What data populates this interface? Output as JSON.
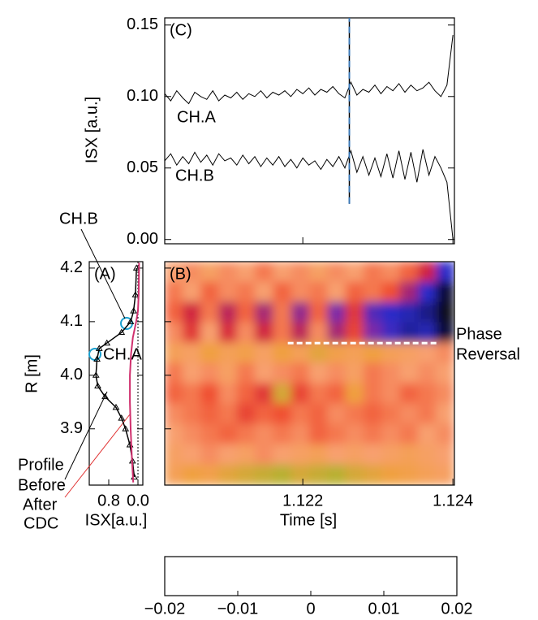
{
  "chart_data": [
    {
      "type": "line",
      "panel": "(C)",
      "ylabel": "ISX [a.u.]",
      "xlim": [
        1.12016,
        1.12402
      ],
      "xticks": [
        1.122,
        1.124
      ],
      "ylim": [
        -0.003,
        0.155
      ],
      "yticks": [
        {
          "value": 0,
          "label": "0.00"
        },
        0.05,
        {
          "value": 0.1,
          "label": "0.10"
        },
        0.15
      ],
      "marker_time": 1.12262,
      "marker_span": [
        0.025,
        0.155
      ],
      "marker_colors": [
        "#000000",
        "#3a78b8"
      ],
      "x": [
        1.12016,
        1.12024,
        1.12032,
        1.1204,
        1.12048,
        1.12056,
        1.12064,
        1.12072,
        1.1208,
        1.12088,
        1.12096,
        1.12104,
        1.12112,
        1.1212,
        1.12128,
        1.12136,
        1.12144,
        1.12152,
        1.1216,
        1.12168,
        1.12176,
        1.12184,
        1.12192,
        1.122,
        1.12208,
        1.12216,
        1.12224,
        1.12232,
        1.1224,
        1.12248,
        1.12256,
        1.12264,
        1.12272,
        1.1228,
        1.12288,
        1.12296,
        1.12304,
        1.12312,
        1.1232,
        1.12328,
        1.12336,
        1.12344,
        1.12352,
        1.1236,
        1.12368,
        1.12376,
        1.12384,
        1.12392,
        1.124
      ],
      "series": [
        {
          "name": "CH.A",
          "color": "#000000",
          "values": [
            0.102,
            0.097,
            0.104,
            0.099,
            0.095,
            0.103,
            0.1,
            0.098,
            0.104,
            0.097,
            0.101,
            0.099,
            0.103,
            0.098,
            0.102,
            0.1,
            0.104,
            0.099,
            0.103,
            0.101,
            0.104,
            0.1,
            0.105,
            0.102,
            0.106,
            0.101,
            0.105,
            0.103,
            0.107,
            0.102,
            0.099,
            0.11,
            0.101,
            0.105,
            0.103,
            0.108,
            0.102,
            0.107,
            0.104,
            0.109,
            0.103,
            0.108,
            0.104,
            0.106,
            0.11,
            0.104,
            0.1,
            0.108,
            0.143
          ]
        },
        {
          "name": "CH.B",
          "color": "#000000",
          "values": [
            0.055,
            0.06,
            0.052,
            0.058,
            0.053,
            0.061,
            0.054,
            0.059,
            0.052,
            0.06,
            0.055,
            0.057,
            0.052,
            0.059,
            0.053,
            0.058,
            0.051,
            0.057,
            0.052,
            0.058,
            0.051,
            0.056,
            0.05,
            0.057,
            0.052,
            0.055,
            0.049,
            0.056,
            0.051,
            0.058,
            0.05,
            0.062,
            0.047,
            0.058,
            0.045,
            0.057,
            0.044,
            0.06,
            0.043,
            0.062,
            0.042,
            0.061,
            0.04,
            0.063,
            0.045,
            0.058,
            0.05,
            0.04,
            0.0
          ]
        }
      ]
    },
    {
      "type": "heatmap",
      "panel": "(B)",
      "xlabel": "Time [s]",
      "xlim": [
        1.12016,
        1.12402
      ],
      "xticks": [
        1.122,
        1.124
      ],
      "ylim": [
        3.795,
        4.212
      ],
      "yticks": [
        4.2,
        4.1,
        4.0,
        3.9
      ],
      "z": [
        [
          0.004,
          0.003,
          0.005,
          0.003,
          0.004,
          0.002,
          0.004,
          0.003,
          0.005,
          0.003,
          0.004,
          0.002,
          0.003,
          0.001,
          -0.004,
          -0.012
        ],
        [
          0.002,
          0.004,
          0.001,
          0.003,
          0.002,
          0.004,
          0.001,
          0.003,
          0.002,
          0.004,
          0.001,
          0.002,
          0.0,
          -0.006,
          -0.012,
          -0.018
        ],
        [
          0.001,
          -0.004,
          0.002,
          -0.005,
          0.001,
          -0.006,
          0.002,
          -0.007,
          0.001,
          -0.008,
          -0.002,
          -0.01,
          -0.012,
          -0.013,
          -0.015,
          -0.019
        ],
        [
          0.003,
          -0.002,
          0.004,
          -0.003,
          0.003,
          -0.004,
          0.002,
          -0.005,
          0.003,
          -0.006,
          -0.001,
          -0.008,
          -0.011,
          -0.014,
          -0.013,
          -0.018
        ],
        [
          0.006,
          0.005,
          0.008,
          0.006,
          0.007,
          0.005,
          0.008,
          0.006,
          0.009,
          0.007,
          0.006,
          0.008,
          0.006,
          0.005,
          0.004,
          0.003
        ],
        [
          0.002,
          0.004,
          0.003,
          0.005,
          0.002,
          0.004,
          0.003,
          0.002,
          0.004,
          0.003,
          0.005,
          0.002,
          0.003,
          0.004,
          0.003,
          0.004
        ],
        [
          0.001,
          0.002,
          0.0,
          0.003,
          0.001,
          -0.002,
          0.01,
          -0.001,
          0.002,
          0.001,
          0.008,
          0.002,
          0.003,
          0.001,
          0.002,
          0.003
        ],
        [
          0.003,
          0.002,
          0.001,
          0.002,
          -0.001,
          0.001,
          0.0,
          0.002,
          0.001,
          0.003,
          0.002,
          0.001,
          0.002,
          0.003,
          0.002,
          0.004
        ],
        [
          0.004,
          0.003,
          0.002,
          0.001,
          0.002,
          0.003,
          0.002,
          0.003,
          0.001,
          0.002,
          0.003,
          0.002,
          0.003,
          0.002,
          0.004,
          0.003
        ],
        [
          0.005,
          0.004,
          0.003,
          0.004,
          0.005,
          0.003,
          0.004,
          0.005,
          0.006,
          0.004,
          0.005,
          0.004,
          0.005,
          0.006,
          0.005,
          0.004
        ],
        [
          0.006,
          0.008,
          0.007,
          0.009,
          0.01,
          0.011,
          0.012,
          0.01,
          0.011,
          0.012,
          0.01,
          0.009,
          0.008,
          0.007,
          0.006,
          0.005
        ]
      ],
      "colormap": [
        "#000000",
        "#1a1a6e",
        "#2a2ac8",
        "#7a2aa8",
        "#d02040",
        "#f05030",
        "#f8a070",
        "#f0a040",
        "#b8b030",
        "#f0f040",
        "#ffffff"
      ],
      "zlim": [
        -0.02,
        0.02
      ],
      "colorbar_ticks": [
        {
          "value": -0.02,
          "label": "−0.02"
        },
        {
          "value": -0.01,
          "label": "−0.01"
        },
        0,
        0.01,
        0.02
      ],
      "phase_reversal": {
        "label": [
          "Phase",
          "Reversal"
        ],
        "r": 4.06,
        "t": [
          1.1218,
          1.1238
        ]
      }
    },
    {
      "type": "profile",
      "panel": "(A)",
      "ylabel": "R [m]",
      "xlabel": "ISX[a.u.]",
      "xlim": [
        1.333,
        -0.133
      ],
      "xticks": [
        0.8,
        {
          "value": 0,
          "label": "0.0"
        }
      ],
      "ylim": [
        3.795,
        4.212
      ],
      "yticks": [
        4.2,
        4.1,
        {
          "value": 4,
          "label": "4.0"
        },
        3.9
      ],
      "annotations": [
        "CH.B",
        "CH.A"
      ],
      "legend_texts": [
        "Profile",
        "CDC"
      ],
      "series": [
        {
          "name": "Before",
          "color": "#000000",
          "r": [
            4.2,
            4.15,
            4.12,
            4.1,
            4.08,
            4.06,
            4.05,
            4.03,
            4.0,
            3.98,
            3.96,
            3.94,
            3.92,
            3.9,
            3.87,
            3.84,
            3.81
          ],
          "isx": [
            0.04,
            0.07,
            0.12,
            0.2,
            0.45,
            0.85,
            1.06,
            1.12,
            1.15,
            1.1,
            0.9,
            0.6,
            0.45,
            0.34,
            0.22,
            0.15,
            0.1
          ]
        },
        {
          "name": "After",
          "color": "#d0306e",
          "r": [
            4.21,
            4.15,
            4.12,
            4.1,
            4.07,
            4.04,
            4.0,
            3.95,
            3.9,
            3.85,
            3.8
          ],
          "isx": [
            -0.03,
            -0.02,
            0.0,
            0.05,
            0.14,
            0.19,
            0.22,
            0.22,
            0.2,
            0.17,
            0.13
          ]
        }
      ]
    }
  ]
}
